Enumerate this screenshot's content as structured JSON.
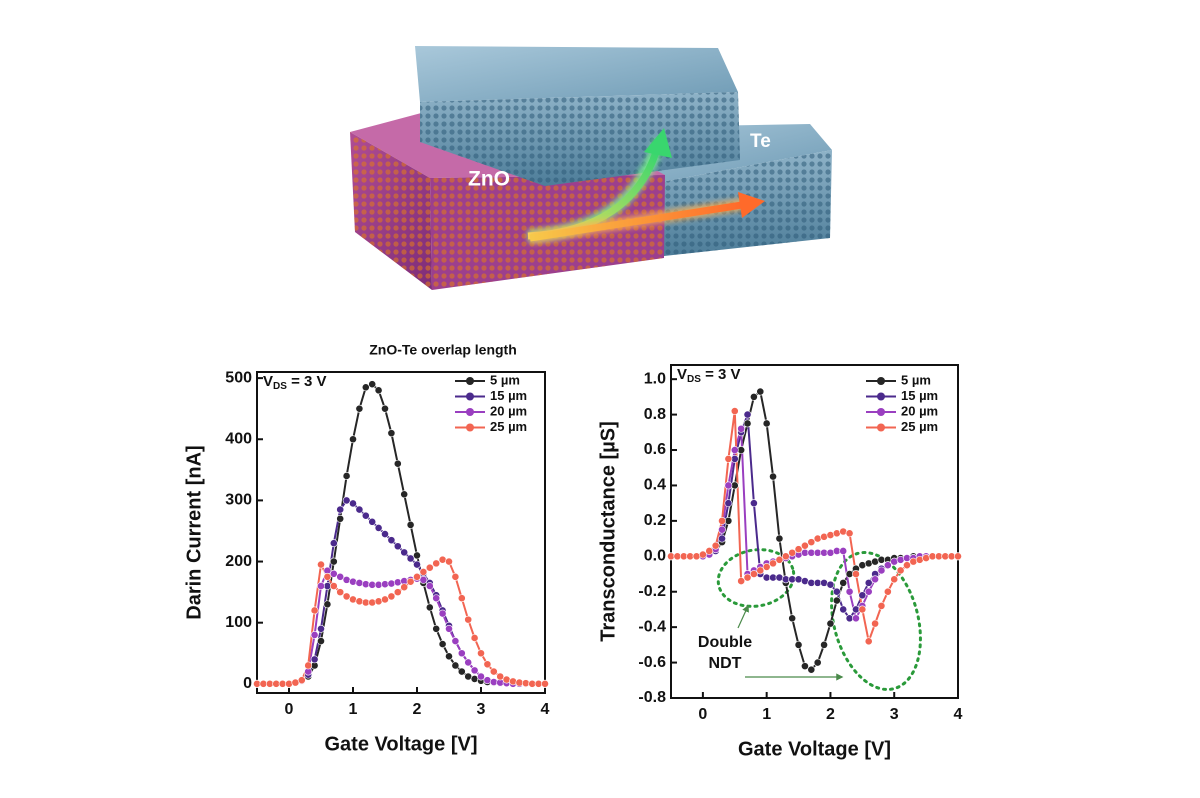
{
  "illustration": {
    "labels": [
      "ZnO",
      "Te"
    ]
  },
  "chart_data": [
    {
      "type": "line",
      "legend_title": "ZnO-Te overlap length",
      "annotation": [
        "V",
        "DS",
        " = 3 V"
      ],
      "xlabel": "Gate Voltage [V]",
      "ylabel": "Darin Current [nA]",
      "legend": "upper right",
      "x": [
        -0.5,
        -0.4,
        -0.3,
        -0.2,
        -0.1,
        0,
        0.1,
        0.2,
        0.3,
        0.4,
        0.5,
        0.6,
        0.7,
        0.8,
        0.9,
        1,
        1.1,
        1.2,
        1.3,
        1.4,
        1.5,
        1.6,
        1.7,
        1.8,
        1.9,
        2,
        2.1,
        2.2,
        2.3,
        2.4,
        2.5,
        2.6,
        2.7,
        2.8,
        2.9,
        3,
        3.1,
        3.2,
        3.3,
        3.4,
        3.5,
        3.6,
        3.7,
        3.8,
        3.9,
        4
      ],
      "xlim": [
        -0.5,
        4
      ],
      "xticks": [
        0,
        1,
        2,
        3,
        4
      ],
      "ylim": [
        -15,
        510
      ],
      "yticks": [
        0,
        100,
        200,
        300,
        400,
        500
      ],
      "series": [
        {
          "name": "5 µm",
          "color": "#262626",
          "values": [
            0,
            0,
            0,
            0,
            0,
            0,
            2,
            5,
            12,
            30,
            70,
            130,
            200,
            270,
            340,
            400,
            450,
            485,
            490,
            480,
            450,
            410,
            360,
            310,
            260,
            210,
            165,
            125,
            90,
            65,
            45,
            30,
            20,
            12,
            8,
            5,
            3,
            2,
            1,
            1,
            0,
            0,
            0,
            0,
            0,
            0
          ]
        },
        {
          "name": "15 µm",
          "color": "#4b2a8c",
          "values": [
            0,
            0,
            0,
            0,
            0,
            0,
            2,
            5,
            15,
            40,
            90,
            160,
            230,
            285,
            300,
            295,
            285,
            275,
            265,
            255,
            245,
            235,
            225,
            215,
            205,
            195,
            180,
            165,
            145,
            120,
            95,
            70,
            50,
            35,
            22,
            12,
            6,
            3,
            2,
            1,
            0,
            0,
            0,
            0,
            0,
            0
          ]
        },
        {
          "name": "20 µm",
          "color": "#9a3fc0",
          "values": [
            0,
            0,
            0,
            0,
            0,
            0,
            2,
            5,
            20,
            80,
            160,
            185,
            180,
            175,
            170,
            167,
            165,
            163,
            162,
            162,
            163,
            164,
            166,
            168,
            170,
            172,
            170,
            160,
            140,
            115,
            90,
            70,
            50,
            35,
            22,
            12,
            6,
            3,
            2,
            1,
            0,
            0,
            0,
            0,
            0,
            0
          ]
        },
        {
          "name": "25 µm",
          "color": "#f26552",
          "values": [
            0,
            0,
            0,
            0,
            0,
            0,
            2,
            6,
            30,
            120,
            195,
            175,
            160,
            150,
            143,
            138,
            135,
            133,
            133,
            135,
            138,
            143,
            150,
            158,
            167,
            175,
            183,
            190,
            197,
            203,
            200,
            175,
            140,
            105,
            75,
            50,
            32,
            20,
            12,
            7,
            4,
            2,
            1,
            0,
            0,
            0
          ]
        }
      ]
    },
    {
      "type": "line",
      "annotation": [
        "V",
        "DS",
        " = 3 V"
      ],
      "notes": [
        "Double",
        "NDT"
      ],
      "xlabel": "Gate Voltage [V]",
      "ylabel": "Transconductance [µS]",
      "legend": "upper right",
      "x": [
        -0.5,
        -0.4,
        -0.3,
        -0.2,
        -0.1,
        0,
        0.1,
        0.2,
        0.3,
        0.4,
        0.5,
        0.6,
        0.7,
        0.8,
        0.9,
        1,
        1.1,
        1.2,
        1.3,
        1.4,
        1.5,
        1.6,
        1.7,
        1.8,
        1.9,
        2,
        2.1,
        2.2,
        2.3,
        2.4,
        2.5,
        2.6,
        2.7,
        2.8,
        2.9,
        3,
        3.1,
        3.2,
        3.3,
        3.4,
        3.5,
        3.6,
        3.7,
        3.8,
        3.9,
        4
      ],
      "xlim": [
        -0.5,
        4
      ],
      "xticks": [
        0,
        1,
        2,
        3,
        4
      ],
      "ylim": [
        -0.8,
        1.08
      ],
      "yticks": [
        -0.8,
        -0.6,
        -0.4,
        -0.2,
        {
          "value": 0,
          "label": "0.0"
        },
        0.2,
        0.4,
        0.6,
        0.8,
        {
          "value": 1,
          "label": "1.0"
        }
      ],
      "series": [
        {
          "name": "5 µm",
          "color": "#262626",
          "values": [
            0,
            0,
            0,
            0,
            0,
            0,
            0.01,
            0.03,
            0.08,
            0.2,
            0.4,
            0.6,
            0.75,
            0.9,
            0.93,
            0.75,
            0.45,
            0.1,
            -0.15,
            -0.35,
            -0.5,
            -0.62,
            -0.64,
            -0.6,
            -0.5,
            -0.38,
            -0.25,
            -0.15,
            -0.1,
            -0.07,
            -0.05,
            -0.04,
            -0.03,
            -0.02,
            -0.02,
            -0.01,
            -0.01,
            -0.01,
            0,
            0,
            0,
            0,
            0,
            0,
            0,
            0
          ]
        },
        {
          "name": "15 µm",
          "color": "#4b2a8c",
          "values": [
            0,
            0,
            0,
            0,
            0,
            0,
            0.01,
            0.03,
            0.1,
            0.3,
            0.55,
            0.7,
            0.8,
            0.3,
            -0.1,
            -0.12,
            -0.12,
            -0.12,
            -0.13,
            -0.13,
            -0.13,
            -0.14,
            -0.15,
            -0.15,
            -0.15,
            -0.16,
            -0.2,
            -0.3,
            -0.35,
            -0.3,
            -0.22,
            -0.15,
            -0.1,
            -0.07,
            -0.05,
            -0.03,
            -0.02,
            -0.01,
            -0.01,
            0,
            0,
            0,
            0,
            0,
            0,
            0
          ]
        },
        {
          "name": "20 µm",
          "color": "#9a3fc0",
          "values": [
            0,
            0,
            0,
            0,
            0,
            0,
            0.01,
            0.04,
            0.15,
            0.4,
            0.6,
            0.72,
            -0.1,
            -0.08,
            -0.06,
            -0.04,
            -0.03,
            -0.02,
            -0.01,
            0,
            0.01,
            0.02,
            0.02,
            0.02,
            0.02,
            0.02,
            0.03,
            0.03,
            -0.2,
            -0.35,
            -0.28,
            -0.2,
            -0.13,
            -0.08,
            -0.05,
            -0.03,
            -0.02,
            -0.01,
            -0.01,
            0,
            0,
            0,
            0,
            0,
            0,
            0
          ]
        },
        {
          "name": "25 µm",
          "color": "#f26552",
          "values": [
            0,
            0,
            0,
            0,
            0,
            0.01,
            0.03,
            0.06,
            0.2,
            0.55,
            0.82,
            -0.14,
            -0.12,
            -0.1,
            -0.08,
            -0.06,
            -0.04,
            -0.02,
            0,
            0.02,
            0.04,
            0.06,
            0.08,
            0.1,
            0.11,
            0.12,
            0.13,
            0.14,
            0.13,
            -0.1,
            -0.3,
            -0.48,
            -0.38,
            -0.28,
            -0.2,
            -0.13,
            -0.08,
            -0.05,
            -0.03,
            -0.02,
            -0.01,
            0,
            0,
            0,
            0,
            0
          ]
        }
      ]
    }
  ]
}
